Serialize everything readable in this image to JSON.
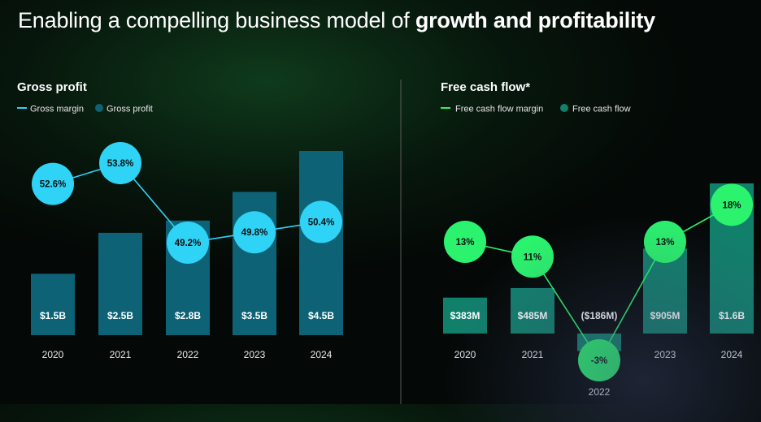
{
  "headline": {
    "prefix": "Enabling a compelling business model of ",
    "bold": "growth and profitability"
  },
  "colors": {
    "gross_bar": "#0e6276",
    "gross_line": "#2ed3f6",
    "fcf_bar": "#11806b",
    "fcf_line": "#2bf36d"
  },
  "chart_data": [
    {
      "type": "bar",
      "title": "Gross profit",
      "legend": {
        "line": "Gross margin",
        "bar": "Gross profit",
        "placement": "top-left"
      },
      "categories": [
        "2020",
        "2021",
        "2022",
        "2023",
        "2024"
      ],
      "bar_values": [
        1.5,
        2.5,
        2.8,
        3.5,
        4.5
      ],
      "bar_labels": [
        "$1.5B",
        "$2.5B",
        "$2.8B",
        "$3.5B",
        "$4.5B"
      ],
      "line_values": [
        52.6,
        53.8,
        49.2,
        49.8,
        50.4
      ],
      "line_labels": [
        "52.6%",
        "53.8%",
        "49.2%",
        "49.8%",
        "50.4%"
      ],
      "grid": false
    },
    {
      "type": "bar",
      "title": "Free cash flow*",
      "legend": {
        "line": "Free cash flow margin",
        "bar": "Free cash flow",
        "placement": "top-left"
      },
      "categories": [
        "2020",
        "2021",
        "2022",
        "2023",
        "2024"
      ],
      "bar_values": [
        383,
        485,
        -186,
        905,
        1600
      ],
      "bar_labels": [
        "$383M",
        "$485M",
        "($186M)",
        "$905M",
        "$1.6B"
      ],
      "line_values": [
        13,
        11,
        -3,
        13,
        18
      ],
      "line_labels": [
        "13%",
        "11%",
        "-3%",
        "13%",
        "18%"
      ],
      "grid": false
    }
  ]
}
